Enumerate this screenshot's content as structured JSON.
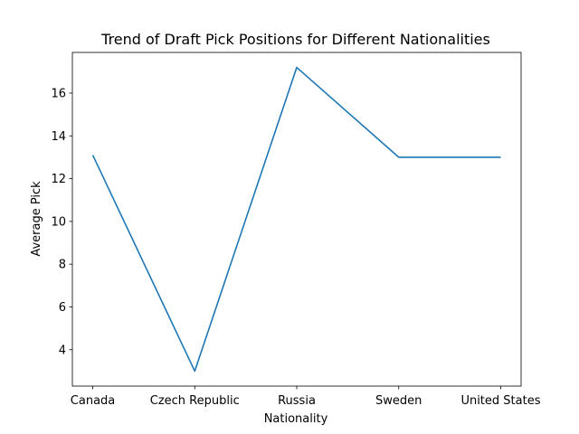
{
  "chart_data": {
    "type": "line",
    "title": "Trend of Draft Pick Positions for Different Nationalities",
    "xlabel": "Nationality",
    "ylabel": "Average Pick",
    "categories": [
      "Canada",
      "Czech Republic",
      "Russia",
      "Sweden",
      "United States"
    ],
    "series": [
      {
        "values": [
          13.1,
          3.0,
          17.2,
          13.0,
          13.0
        ]
      }
    ],
    "ylim": [
      2.3,
      17.9
    ],
    "yticks": [
      4,
      6,
      8,
      10,
      12,
      14,
      16
    ],
    "grid": false,
    "line_color": "#1f77b4"
  }
}
